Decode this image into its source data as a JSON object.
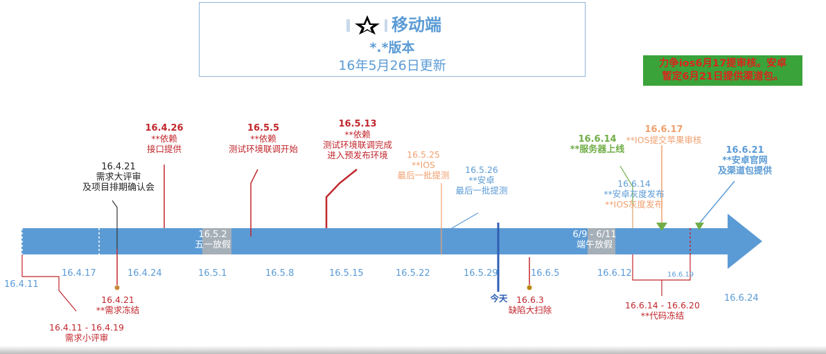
{
  "title": {
    "line1": "移动端",
    "line2": "*.*版本",
    "line3": "16年5月26日更新"
  },
  "note": {
    "line1": "力争ios6月17提审核。安卓",
    "line2": "暂定6月21日提供渠道包。"
  },
  "axis_ticks": [
    "16.4.11",
    "16.4.17",
    "16.4.24",
    "16.5.1",
    "16.5.8",
    "16.5.15",
    "16.5.22",
    "16.5.29",
    "16.6.5",
    "16.6.12",
    "16.6.19",
    "16.6.24"
  ],
  "bands": {
    "may_day": {
      "date": "16.5.2",
      "label": "五一放假"
    },
    "dragon_boat": {
      "date": "6/9 - 6/11",
      "label": "端午放假"
    }
  },
  "events_above": [
    {
      "date": "16.4.21",
      "lines": [
        "需求大评审",
        "及项目排期确认会"
      ]
    },
    {
      "date": "16.4.26",
      "lines": [
        "**依赖",
        "接口提供"
      ]
    },
    {
      "date": "16.5.5",
      "lines": [
        "**依赖",
        "测试环境联调开始"
      ]
    },
    {
      "date": "16.5.13",
      "lines": [
        "**依赖",
        "测试环境联调完成",
        "进入预发布环境"
      ]
    },
    {
      "date": "16.5.25",
      "lines": [
        "**IOS",
        "最后一批提测"
      ]
    },
    {
      "date": "16.5.26",
      "lines": [
        "**安卓",
        "最后一批提测"
      ]
    },
    {
      "date": "16.6.14",
      "lines": [
        "**服务器上线"
      ]
    },
    {
      "date": "16.6.17",
      "lines": [
        "**IOS提交苹果审核"
      ]
    },
    {
      "date": "16.6.14",
      "lines": [
        "**安卓灰度发布",
        "**IOS灰度发布"
      ]
    },
    {
      "date": "16.6.21",
      "lines": [
        "**安卓官网",
        "及渠道包提供"
      ]
    }
  ],
  "events_below": [
    {
      "date": "16.4.21",
      "lines": [
        "**需求冻结"
      ]
    },
    {
      "date": "16.4.11 - 16.4.19",
      "lines": [
        "需求小评审"
      ]
    },
    {
      "date": "今天",
      "lines": []
    },
    {
      "date": "16.6.3",
      "lines": [
        "缺陷大扫除"
      ]
    },
    {
      "date": "16.6.14 - 16.6.20",
      "lines": [
        "**代码冻结"
      ]
    }
  ],
  "colors": {
    "arrow": "#5b9bd5",
    "red": "#c0262c",
    "blue": "#5b9bd5",
    "orange": "#f0a070",
    "green": "#70ad47",
    "today": "#2f5fb3",
    "note_bg": "#3aa33a"
  }
}
